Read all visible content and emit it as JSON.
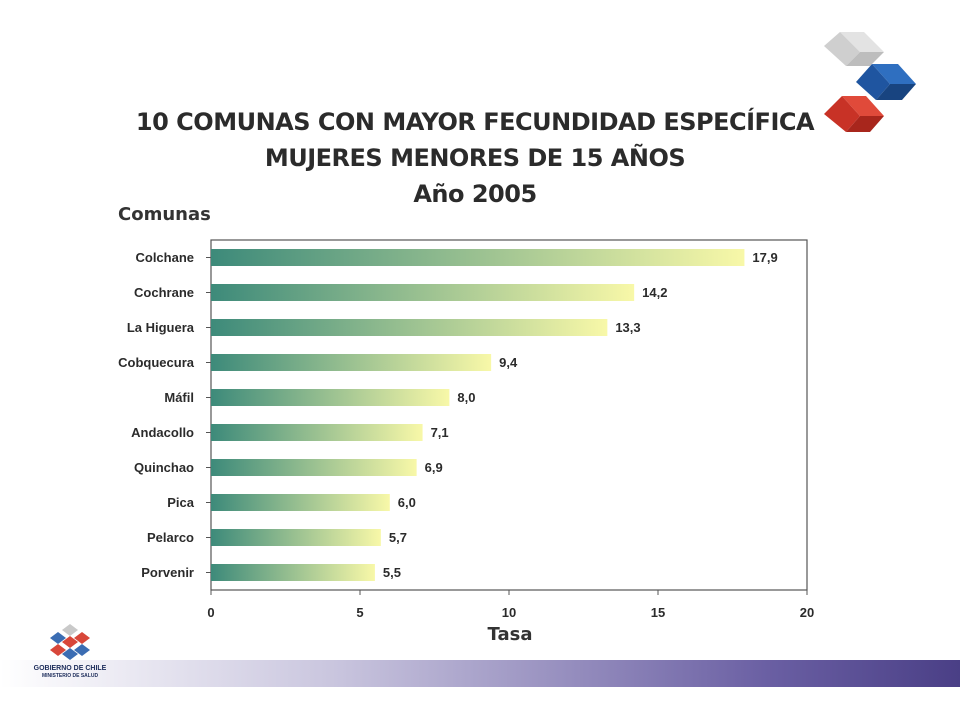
{
  "chart_data": {
    "type": "bar",
    "orientation": "horizontal",
    "title_lines": [
      "10 COMUNAS CON MAYOR FECUNDIDAD ESPECÍFICA",
      "MUJERES MENORES DE 15 AÑOS",
      "Año 2005"
    ],
    "ylabel": "Comunas",
    "xlabel": "Tasa",
    "categories": [
      "Colchane",
      "Cochrane",
      "La Higuera",
      "Cobquecura",
      "Máfil",
      "Andacollo",
      "Quinchao",
      "Pica",
      "Pelarco",
      "Porvenir"
    ],
    "values": [
      17.9,
      14.2,
      13.3,
      9.4,
      8.0,
      7.1,
      6.9,
      6.0,
      5.7,
      5.5
    ],
    "data_labels": [
      "17,9",
      "14,2",
      "13,3",
      "9,4",
      "8,0",
      "7,1",
      "6,9",
      "6,0",
      "5,7",
      "5,5"
    ],
    "xlim": [
      0,
      20
    ],
    "xticks": [
      0,
      5,
      10,
      15,
      20
    ],
    "grid": false,
    "bar_gradient": [
      "#3d8a7a",
      "#f8f8a8"
    ]
  },
  "logo": {
    "org_name": "GOBIERNO DE CHILE",
    "org_sub": "MINISTERIO DE SALUD"
  }
}
